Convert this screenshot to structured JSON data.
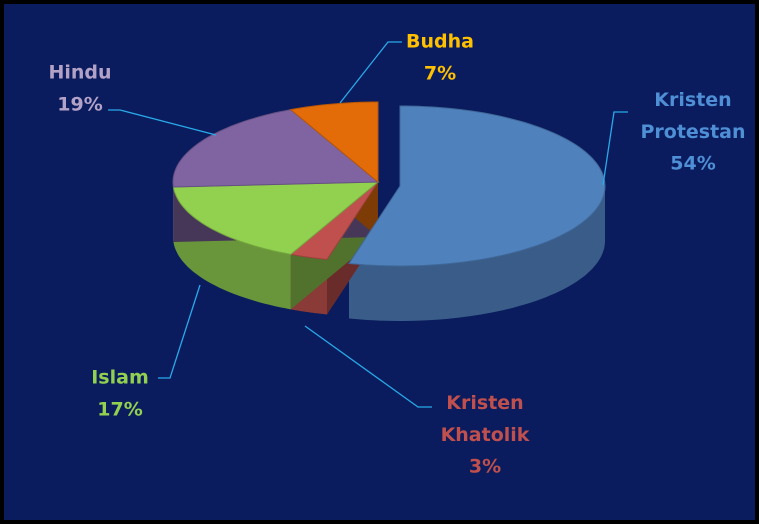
{
  "chart_data": {
    "type": "pie",
    "categories": [
      "Kristen Protestan",
      "Kristen Khatolik",
      "Islam",
      "Hindu",
      "Budha"
    ],
    "values": [
      54,
      3,
      17,
      19,
      7
    ],
    "value_labels": [
      "54%",
      "3%",
      "17%",
      "19%",
      "7%"
    ],
    "colors": [
      "#4f81bd",
      "#c0504d",
      "#92d050",
      "#8064a2",
      "#e36c09"
    ],
    "label_colors": [
      "#4f8fd6",
      "#c0504d",
      "#92d050",
      "#b3a2c7",
      "#ffc000"
    ]
  }
}
